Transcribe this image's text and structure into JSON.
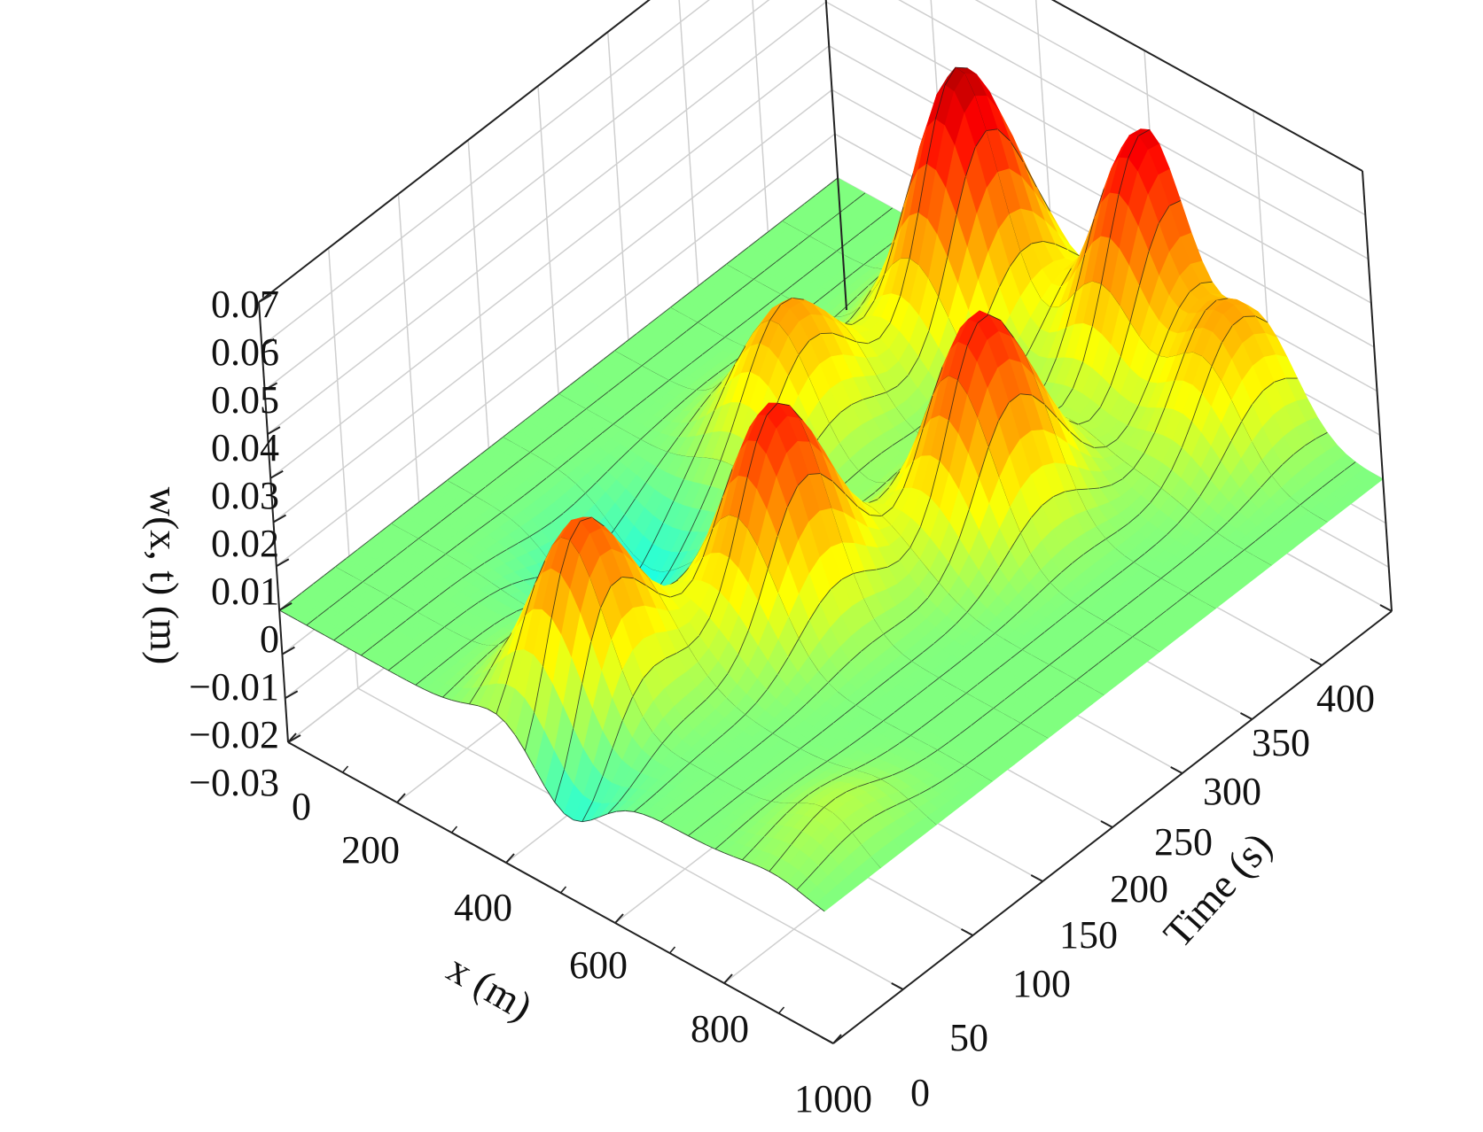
{
  "chart_data": {
    "type": "surface3d",
    "x_axis": {
      "label": "x (m)",
      "range": [
        0,
        1000
      ],
      "ticks": [
        0,
        200,
        400,
        600,
        800,
        1000
      ]
    },
    "y_axis": {
      "label": "Time (s)",
      "range": [
        0,
        400
      ],
      "ticks": [
        0,
        50,
        100,
        150,
        200,
        250,
        300,
        350,
        400
      ]
    },
    "z_axis": {
      "label": "w(x, t) (m)",
      "range": [
        -0.03,
        0.07
      ],
      "ticks": [
        -0.03,
        -0.02,
        -0.01,
        0,
        0.01,
        0.02,
        0.03,
        0.04,
        0.05,
        0.06,
        0.07
      ],
      "tick_labels": [
        "−0.03",
        "−0.02",
        "−0.01",
        "0",
        "0.01",
        "0.02",
        "0.03",
        "0.04",
        "0.05",
        "0.06",
        "0.07"
      ]
    },
    "grid": true,
    "colormap": "jet",
    "boundary": "w = 0 at x = 0 and x = 1000",
    "peak_values": [
      {
        "x": 500,
        "t": 0,
        "w": -0.02
      },
      {
        "x": 450,
        "t": 45,
        "w": 0.044
      },
      {
        "x": 950,
        "t": 45,
        "w": 0.03
      },
      {
        "x": 250,
        "t": 140,
        "w": -0.021
      },
      {
        "x": 550,
        "t": 150,
        "w": 0.048
      },
      {
        "x": 300,
        "t": 250,
        "w": 0.036
      },
      {
        "x": 650,
        "t": 260,
        "w": 0.053
      },
      {
        "x": 350,
        "t": 360,
        "w": 0.066
      },
      {
        "x": 800,
        "t": 380,
        "w": 0.046
      },
      {
        "x": 600,
        "t": 395,
        "w": 0.055
      }
    ]
  }
}
